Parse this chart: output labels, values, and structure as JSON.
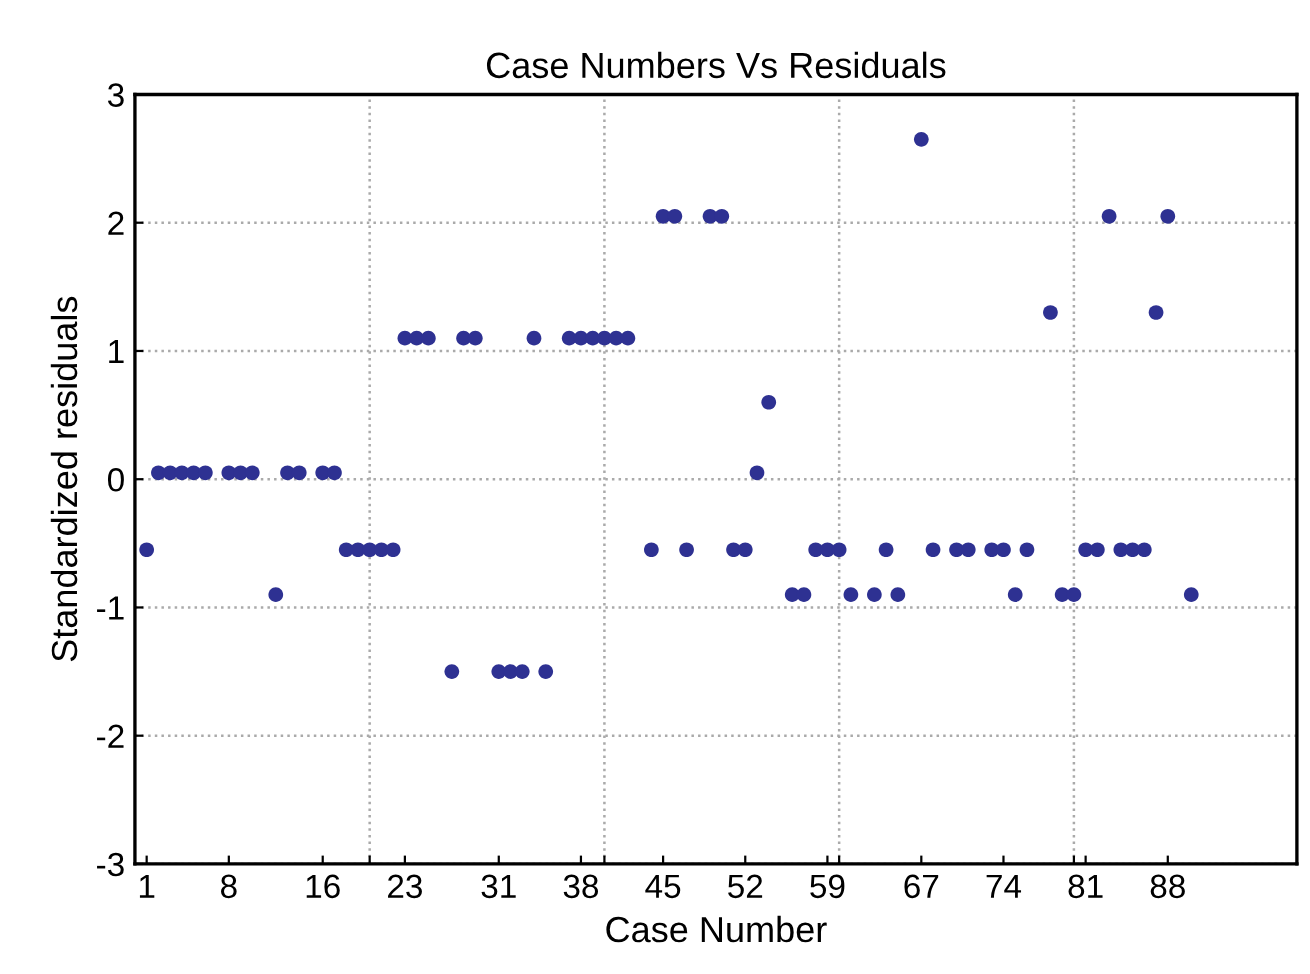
{
  "chart_data": {
    "type": "scatter",
    "title": "Case Numbers Vs Residuals",
    "xlabel": "Case Number",
    "ylabel": "Standardized residuals",
    "series": [
      {
        "color": "#2e3192",
        "x": [
          1,
          2,
          3,
          4,
          5,
          6,
          8,
          9,
          10,
          12,
          13,
          14,
          16,
          17,
          18,
          19,
          20,
          21,
          22,
          23,
          24,
          25,
          27,
          28,
          29,
          31,
          32,
          33,
          34,
          35,
          37,
          38,
          39,
          40,
          41,
          42,
          44,
          45,
          46,
          47,
          49,
          50,
          51,
          52,
          53,
          54,
          56,
          57,
          58,
          59,
          60,
          61,
          63,
          64,
          65,
          67,
          68,
          70,
          71,
          73,
          74,
          75,
          76,
          78,
          79,
          80,
          81,
          82,
          83,
          84,
          85,
          86,
          87,
          88,
          90
        ],
        "values": [
          -0.55,
          0.05,
          0.05,
          0.05,
          0.05,
          0.05,
          0.05,
          0.05,
          0.05,
          -0.9,
          0.05,
          0.05,
          0.05,
          0.05,
          -0.55,
          -0.55,
          -0.55,
          -0.55,
          -0.55,
          1.1,
          1.1,
          1.1,
          -1.5,
          1.1,
          1.1,
          -1.5,
          -1.5,
          -1.5,
          1.1,
          -1.5,
          1.1,
          1.1,
          1.1,
          1.1,
          1.1,
          1.1,
          -0.55,
          2.05,
          2.05,
          -0.55,
          2.05,
          2.05,
          -0.55,
          -0.55,
          0.05,
          0.6,
          -0.9,
          -0.9,
          -0.55,
          -0.55,
          -0.55,
          -0.9,
          -0.9,
          -0.55,
          -0.9,
          2.65,
          -0.55,
          -0.55,
          -0.55,
          -0.55,
          -0.55,
          -0.9,
          -0.55,
          1.3,
          -0.9,
          -0.9,
          -0.55,
          -0.55,
          2.05,
          -0.55,
          -0.55,
          -0.55,
          1.3,
          2.05,
          -0.9
        ]
      }
    ],
    "xlim": [
      0,
      99
    ],
    "xticks": [
      1,
      8,
      16,
      23,
      31,
      38,
      45,
      52,
      59,
      67,
      74,
      81,
      88,
      {
        "value": 20,
        "label": null
      },
      {
        "value": 40,
        "label": null
      },
      {
        "value": 60,
        "label": null
      },
      {
        "value": 80,
        "label": null
      }
    ],
    "ylim": [
      -3,
      3
    ],
    "yticks": [
      -3,
      -2,
      -1,
      0,
      1,
      2,
      3
    ],
    "grid": true,
    "marker": "circle",
    "legend": false
  }
}
